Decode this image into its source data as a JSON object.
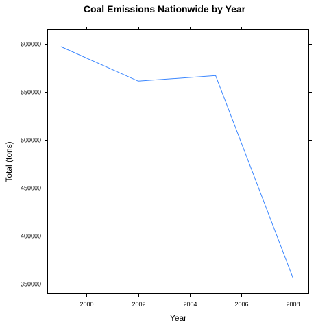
{
  "chart_data": {
    "type": "line",
    "title": "Coal Emissions Nationwide by Year",
    "xlabel": "Year",
    "ylabel": "Total (tons)",
    "x": [
      1999,
      2002,
      2005,
      2008
    ],
    "series": [
      {
        "values": [
          596900,
          561000,
          566700,
          356100
        ]
      }
    ],
    "xlim": [
      1998.5,
      2008.6
    ],
    "ylim": [
      340000,
      614000
    ],
    "xticks": [
      2000,
      2002,
      2004,
      2006,
      2008
    ],
    "yticks": [
      350000,
      400000,
      450000,
      500000,
      550000,
      600000
    ],
    "xtick_labels": [
      "2000",
      "2002",
      "2004",
      "2006",
      "2008"
    ],
    "ytick_labels": [
      "350000",
      "400000",
      "450000",
      "500000",
      "550000",
      "600000"
    ],
    "grid": false,
    "line_color": "#3a86ff"
  }
}
